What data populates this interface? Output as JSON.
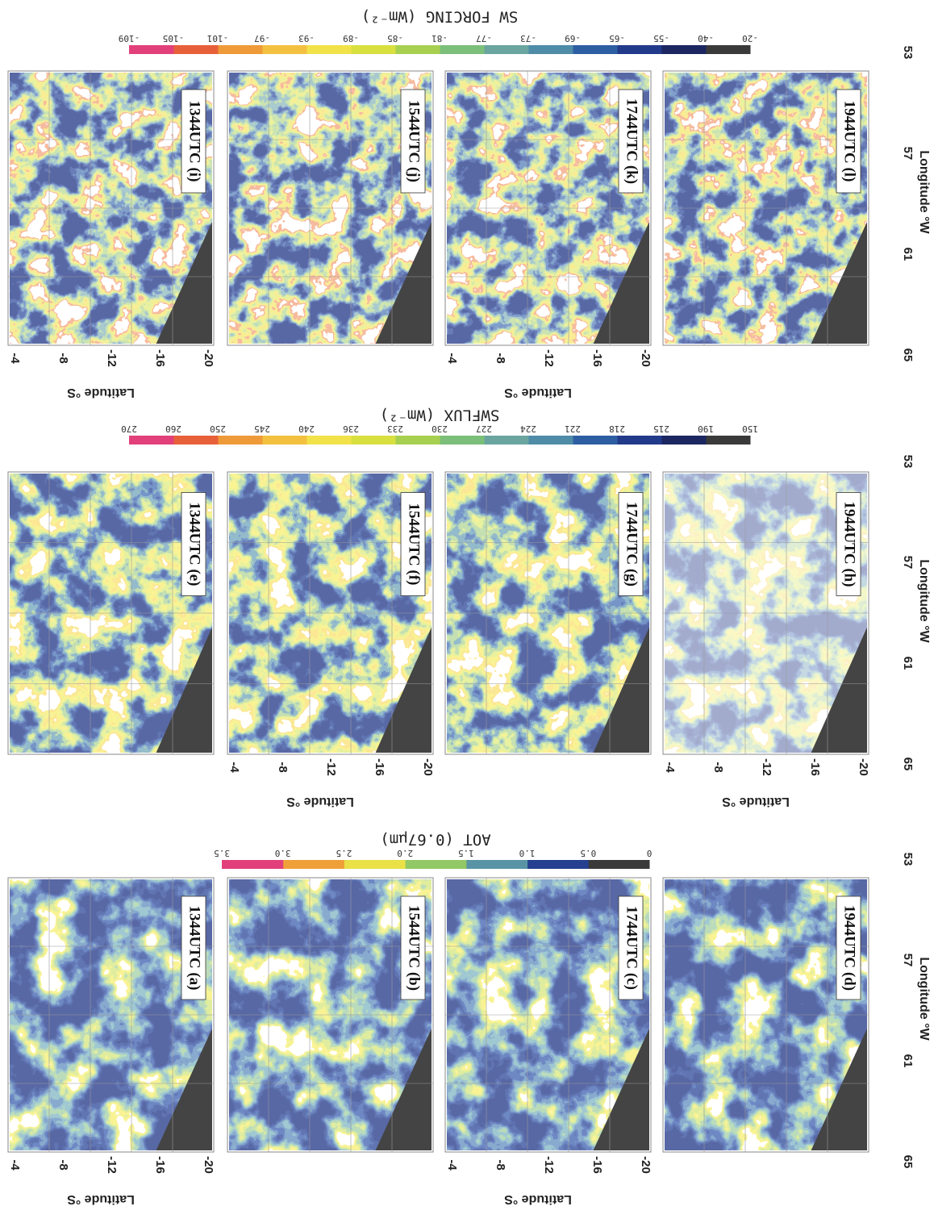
{
  "bands": [
    {
      "colorbar": {
        "title": "AOT (0.67μm)",
        "ticks": [
          "0",
          "0.5",
          "1.0",
          "1.5",
          "2.0",
          "2.5",
          "3.0",
          "3.5"
        ]
      },
      "panels": [
        "1344UTC (a)",
        "1544UTC (b)",
        "1744UTC (c)",
        "1944UTC (d)"
      ]
    },
    {
      "colorbar": {
        "title": "SWFLUX (Wm⁻²)",
        "ticks": [
          "150",
          "190",
          "215",
          "218",
          "221",
          "224",
          "227",
          "230",
          "233",
          "236",
          "240",
          "245",
          "250",
          "260",
          "270"
        ]
      },
      "panels": [
        "1344UTC (e)",
        "1544UTC (f)",
        "1744UTC (g)",
        "1944UTC (h)"
      ]
    },
    {
      "colorbar": {
        "title": "SW FORCING (Wm⁻²)",
        "ticks": [
          "-20",
          "-40",
          "-55",
          "-65",
          "-69",
          "-73",
          "-77",
          "-81",
          "-85",
          "-89",
          "-93",
          "-97",
          "-101",
          "-105",
          "-109"
        ]
      },
      "panels": [
        "1344UTC (i)",
        "1544UTC (j)",
        "1744UTC (k)",
        "1944UTC (l)"
      ]
    }
  ],
  "latitude_label": "Latitude °S",
  "latitude_ticks": [
    "-4",
    "-8",
    "-12",
    "-16",
    "-20"
  ],
  "longitude_label": "Longitude °W",
  "longitude_ticks": [
    "65",
    "61",
    "57",
    "53"
  ]
}
